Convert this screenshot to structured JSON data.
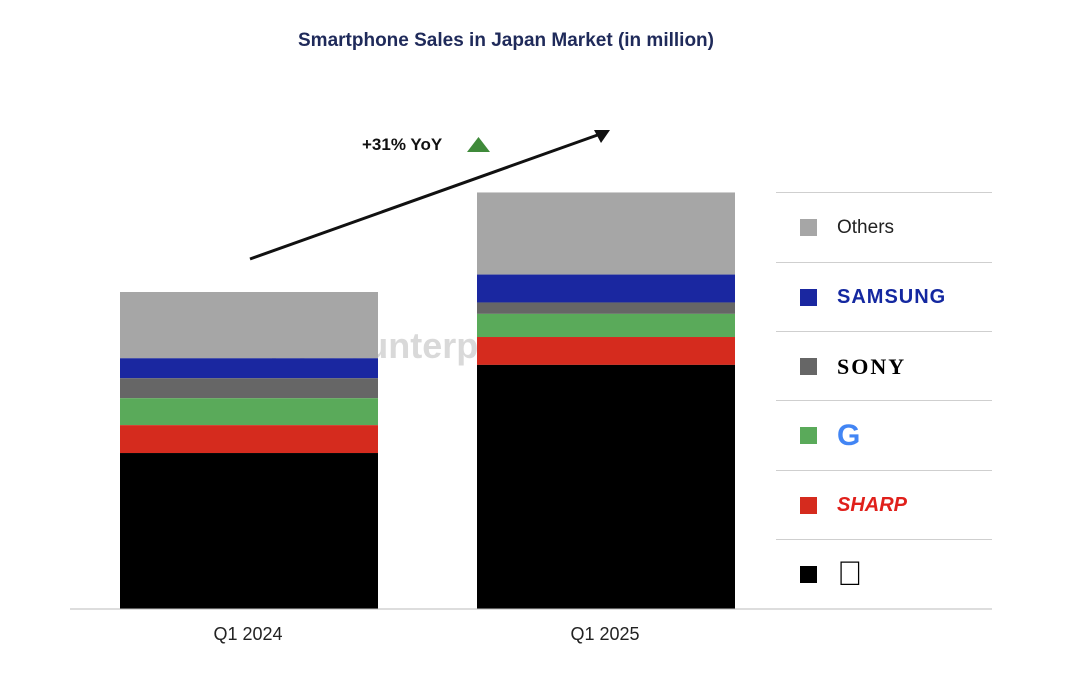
{
  "chart_data": {
    "type": "bar",
    "stacked": true,
    "title": "Smartphone Sales in Japan Market (in million)",
    "categories": [
      "Q1 2024",
      "Q1 2025"
    ],
    "value_note": "relative units, Q1 2024 total = 100 (no axis values printed)",
    "series": [
      {
        "name": "Apple",
        "color": "#000000",
        "values": [
          49.2,
          77.0
        ]
      },
      {
        "name": "SHARP",
        "color": "#d52b1e",
        "values": [
          8.8,
          8.8
        ]
      },
      {
        "name": "Google",
        "color": "#5aaa5a",
        "values": [
          8.5,
          7.3
        ]
      },
      {
        "name": "SONY",
        "color": "#666666",
        "values": [
          6.3,
          3.6
        ]
      },
      {
        "name": "SAMSUNG",
        "color": "#1a27a0",
        "values": [
          6.3,
          8.8
        ]
      },
      {
        "name": "Others",
        "color": "#a6a6a6",
        "values": [
          20.9,
          25.9
        ]
      }
    ],
    "annotation": "+31% YoY",
    "annotation_color": "#3f8a3a",
    "legend_placement": "right",
    "grid": false,
    "ylim": [
      0,
      140
    ]
  },
  "legend": {
    "others": "Others",
    "samsung": "SAMSUNG",
    "sony": "SONY",
    "google": "G",
    "sharp": "SHARP",
    "apple": "apple-logo"
  },
  "watermark": "Counterpoint"
}
